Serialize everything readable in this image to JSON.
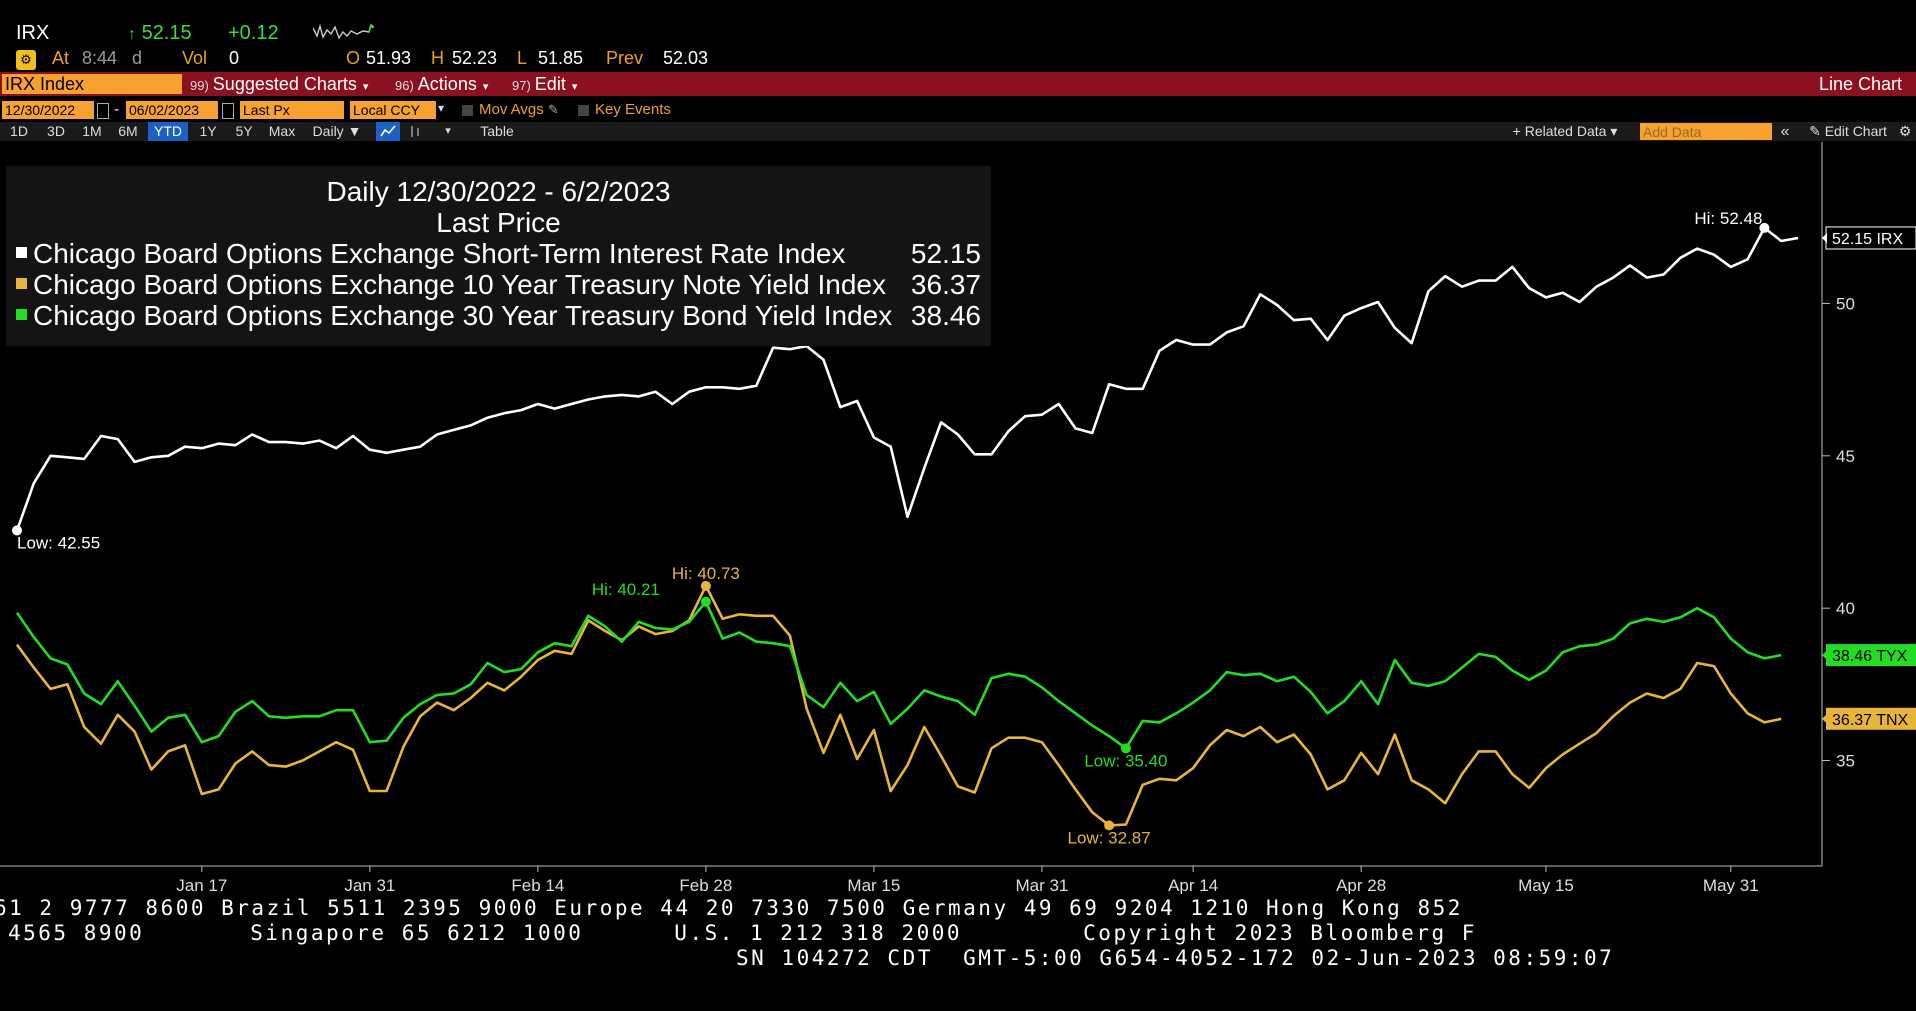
{
  "quote": {
    "ticker": "IRX",
    "last_arrow": "↑",
    "last": "52.15",
    "change": "+0.12",
    "at_label": "At",
    "time": "8:44",
    "time_suffix": "d",
    "vol_label": "Vol",
    "vol": "0",
    "open_label": "O",
    "open": "51.93",
    "high_label": "H",
    "high": "52.23",
    "low_label": "L",
    "low": "51.85",
    "prev_label": "Prev",
    "prev": "52.03"
  },
  "menubar": {
    "security": "IRX Index",
    "items": [
      {
        "num": "99)",
        "label": "Suggested Charts"
      },
      {
        "num": "96)",
        "label": "Actions"
      },
      {
        "num": "97)",
        "label": "Edit"
      }
    ],
    "chart_type": "Line Chart"
  },
  "controls": {
    "start_date": "12/30/2022",
    "date_sep": "-",
    "end_date": "06/02/2023",
    "field": "Last Px",
    "currency": "Local CCY",
    "mov_avgs": "Mov Avgs",
    "key_events": "Key Events",
    "ranges": [
      "1D",
      "3D",
      "1M",
      "6M",
      "YTD",
      "1Y",
      "5Y",
      "Max"
    ],
    "active_range": "YTD",
    "frequency": "Daily ▼",
    "table": "Table",
    "related_data": "+ Related Data ▾",
    "add_data_placeholder": "Add Data",
    "collapse": "«",
    "edit_chart": "Edit Chart",
    "gear": "gear-icon"
  },
  "legend": {
    "title1": "Daily 12/30/2022 - 6/2/2023",
    "title2": "Last Price",
    "rows": [
      {
        "name": "Chicago Board Options Exchange Short-Term Interest Rate Index",
        "value": "52.15",
        "color": "#ffffff"
      },
      {
        "name": "Chicago Board Options Exchange 10 Year Treasury Note Yield Index",
        "value": "36.37",
        "color": "#e8b53a"
      },
      {
        "name": "Chicago Board Options Exchange 30 Year Treasury Bond Yield Index",
        "value": "38.46",
        "color": "#22dd22"
      }
    ]
  },
  "chart_data": {
    "type": "line",
    "x_tick_labels": [
      "Jan 17",
      "Jan 31",
      "Feb 14",
      "Feb 28",
      "Mar 15",
      "Mar 31",
      "Apr 14",
      "Apr 28",
      "May 15",
      "May 31"
    ],
    "year_label": "2023",
    "y_ticks": [
      35,
      40,
      45,
      50
    ],
    "ylim": [
      31.8,
      55.3
    ],
    "series": [
      {
        "name": "IRX",
        "color": "#ffffff",
        "last_label": "52.15 IRX",
        "values": [
          42.55,
          44.1,
          45.0,
          44.95,
          44.9,
          45.65,
          45.55,
          44.8,
          44.95,
          45.0,
          45.3,
          45.25,
          45.4,
          45.35,
          45.7,
          45.45,
          45.45,
          45.4,
          45.5,
          45.25,
          45.65,
          45.2,
          45.1,
          45.2,
          45.3,
          45.7,
          45.85,
          46.0,
          46.25,
          46.4,
          46.5,
          46.7,
          46.55,
          46.7,
          46.85,
          46.95,
          47.0,
          46.95,
          47.1,
          46.7,
          47.1,
          47.25,
          47.25,
          47.2,
          47.3,
          48.55,
          48.5,
          48.6,
          48.15,
          46.6,
          46.8,
          45.6,
          45.3,
          43.0,
          44.6,
          46.1,
          45.7,
          45.05,
          45.05,
          45.8,
          46.3,
          46.35,
          46.7,
          45.9,
          45.75,
          47.35,
          47.2,
          47.2,
          48.45,
          48.8,
          48.65,
          48.65,
          49.05,
          49.25,
          50.3,
          49.95,
          49.45,
          49.5,
          48.8,
          49.6,
          49.85,
          50.05,
          49.2,
          48.7,
          50.4,
          50.9,
          50.55,
          50.75,
          50.75,
          51.2,
          50.5,
          50.2,
          50.35,
          50.05,
          50.55,
          50.85,
          51.25,
          50.85,
          50.95,
          51.5,
          51.8,
          51.6,
          51.2,
          51.45,
          52.48,
          52.05,
          52.15
        ],
        "hi": {
          "label": "Hi: 52.48",
          "value": 52.48
        },
        "low": {
          "label": "Low: 42.55",
          "value": 42.55
        }
      },
      {
        "name": "TNX",
        "color": "#e8b53a",
        "last_label": "36.37 TNX",
        "values": [
          38.8,
          38.05,
          37.35,
          37.5,
          36.1,
          35.55,
          36.5,
          35.95,
          34.7,
          35.3,
          35.5,
          33.9,
          34.05,
          34.9,
          35.3,
          34.85,
          34.8,
          35.0,
          35.3,
          35.6,
          35.35,
          34.0,
          34.0,
          35.45,
          36.45,
          36.9,
          36.65,
          37.05,
          37.55,
          37.3,
          37.75,
          38.3,
          38.6,
          38.5,
          39.6,
          39.25,
          38.95,
          39.4,
          39.15,
          39.25,
          39.6,
          40.73,
          39.65,
          39.8,
          39.75,
          39.75,
          39.1,
          36.7,
          35.25,
          36.5,
          35.05,
          36.0,
          34.0,
          34.85,
          36.1,
          35.15,
          34.15,
          33.95,
          35.4,
          35.75,
          35.75,
          35.6,
          34.85,
          34.05,
          33.3,
          32.87,
          32.9,
          34.2,
          34.4,
          34.35,
          34.75,
          35.5,
          36.0,
          35.8,
          36.1,
          35.6,
          35.85,
          35.2,
          34.05,
          34.35,
          35.25,
          34.55,
          35.85,
          34.35,
          34.05,
          33.6,
          34.55,
          35.3,
          35.3,
          34.55,
          34.1,
          34.75,
          35.2,
          35.55,
          35.9,
          36.45,
          36.9,
          37.2,
          37.05,
          37.35,
          38.2,
          38.1,
          37.2,
          36.55,
          36.25,
          36.37
        ],
        "hi": {
          "label": "Hi: 40.73",
          "value": 40.73
        },
        "low": {
          "label": "Low: 32.87",
          "value": 32.87
        }
      },
      {
        "name": "TYX",
        "color": "#22dd22",
        "last_label": "38.46 TYX",
        "values": [
          39.85,
          39.05,
          38.35,
          38.15,
          37.2,
          36.85,
          37.6,
          36.8,
          35.95,
          36.4,
          36.5,
          35.6,
          35.8,
          36.6,
          36.95,
          36.45,
          36.4,
          36.45,
          36.45,
          36.65,
          36.65,
          35.6,
          35.65,
          36.4,
          36.85,
          37.15,
          37.2,
          37.5,
          38.2,
          37.9,
          38.0,
          38.55,
          38.85,
          38.75,
          39.75,
          39.4,
          38.9,
          39.55,
          39.35,
          39.3,
          39.55,
          40.21,
          39.0,
          39.2,
          38.9,
          38.85,
          38.75,
          37.15,
          36.75,
          37.55,
          36.95,
          37.25,
          36.2,
          36.7,
          37.3,
          37.1,
          36.95,
          36.5,
          37.7,
          37.85,
          37.75,
          37.4,
          36.95,
          36.55,
          36.15,
          35.8,
          35.4,
          36.3,
          36.25,
          36.55,
          36.9,
          37.3,
          37.9,
          37.8,
          37.85,
          37.6,
          37.75,
          37.25,
          36.55,
          36.95,
          37.6,
          36.85,
          38.3,
          37.55,
          37.45,
          37.6,
          38.05,
          38.5,
          38.4,
          37.95,
          37.65,
          37.95,
          38.55,
          38.75,
          38.8,
          39.0,
          39.5,
          39.65,
          39.55,
          39.7,
          40.0,
          39.7,
          39.0,
          38.55,
          38.35,
          38.46
        ],
        "hi": {
          "label": "Hi: 40.21",
          "value": 40.21
        },
        "low": {
          "label": "Low: 35.40",
          "value": 35.4
        }
      }
    ]
  },
  "footer": {
    "line1": "61 2 9777 8600 Brazil 5511 2395 9000 Europe 44 20 7330 7500 Germany 49 69 9204 1210 Hong Kong 852",
    "line2": "4565 8900       Singapore 65 6212 1000      U.S. 1 212 318 2000        Copyright 2023 Bloomberg F",
    "line3": "SN 104272 CDT  GMT-5:00 G654-4052-172 02-Jun-2023 08:59:07"
  }
}
